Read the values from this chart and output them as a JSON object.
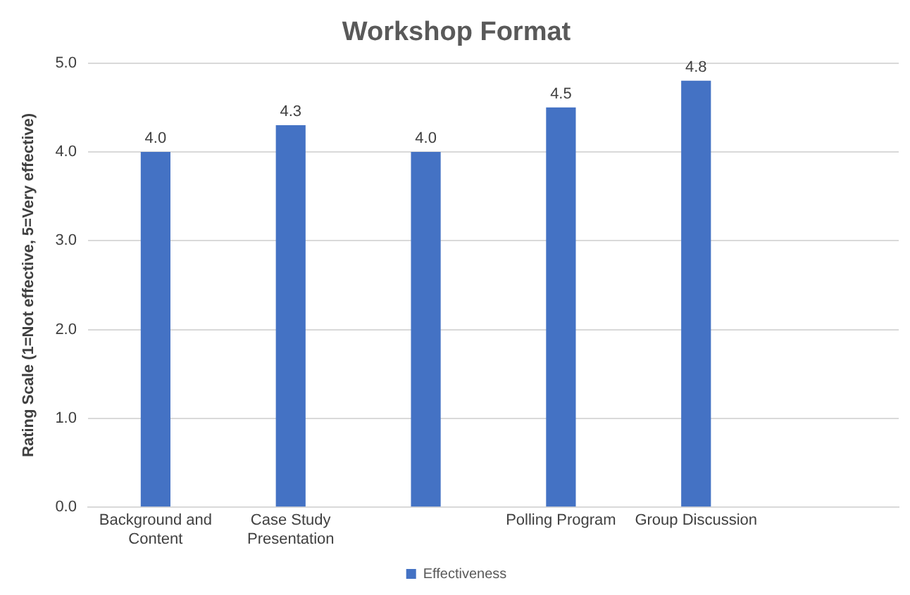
{
  "chart_data": {
    "type": "bar",
    "title": "Workshop Format",
    "ylabel": "Rating Scale (1=Not effective, 5=Very effective)",
    "categories": [
      "Background and Content",
      "Case Study Presentation",
      null,
      "Polling Program",
      "Group Discussion",
      null
    ],
    "series": [
      {
        "name": "Effectiveness",
        "color": "#4472c4",
        "values": [
          4.0,
          4.3,
          4.0,
          4.5,
          4.8,
          null
        ],
        "value_labels": [
          "4.0",
          "4.3",
          "4.0",
          "4.5",
          "4.8",
          null
        ]
      }
    ],
    "ylim": [
      0,
      5
    ],
    "yticks": [
      {
        "value": 0,
        "label": "0.0"
      },
      {
        "value": 1,
        "label": "1.0"
      },
      {
        "value": 2,
        "label": "2.0"
      },
      {
        "value": 3,
        "label": "3.0"
      },
      {
        "value": 4,
        "label": "4.0"
      },
      {
        "value": 5,
        "label": "5.0"
      }
    ],
    "grid": "y",
    "legend": "bottom"
  }
}
